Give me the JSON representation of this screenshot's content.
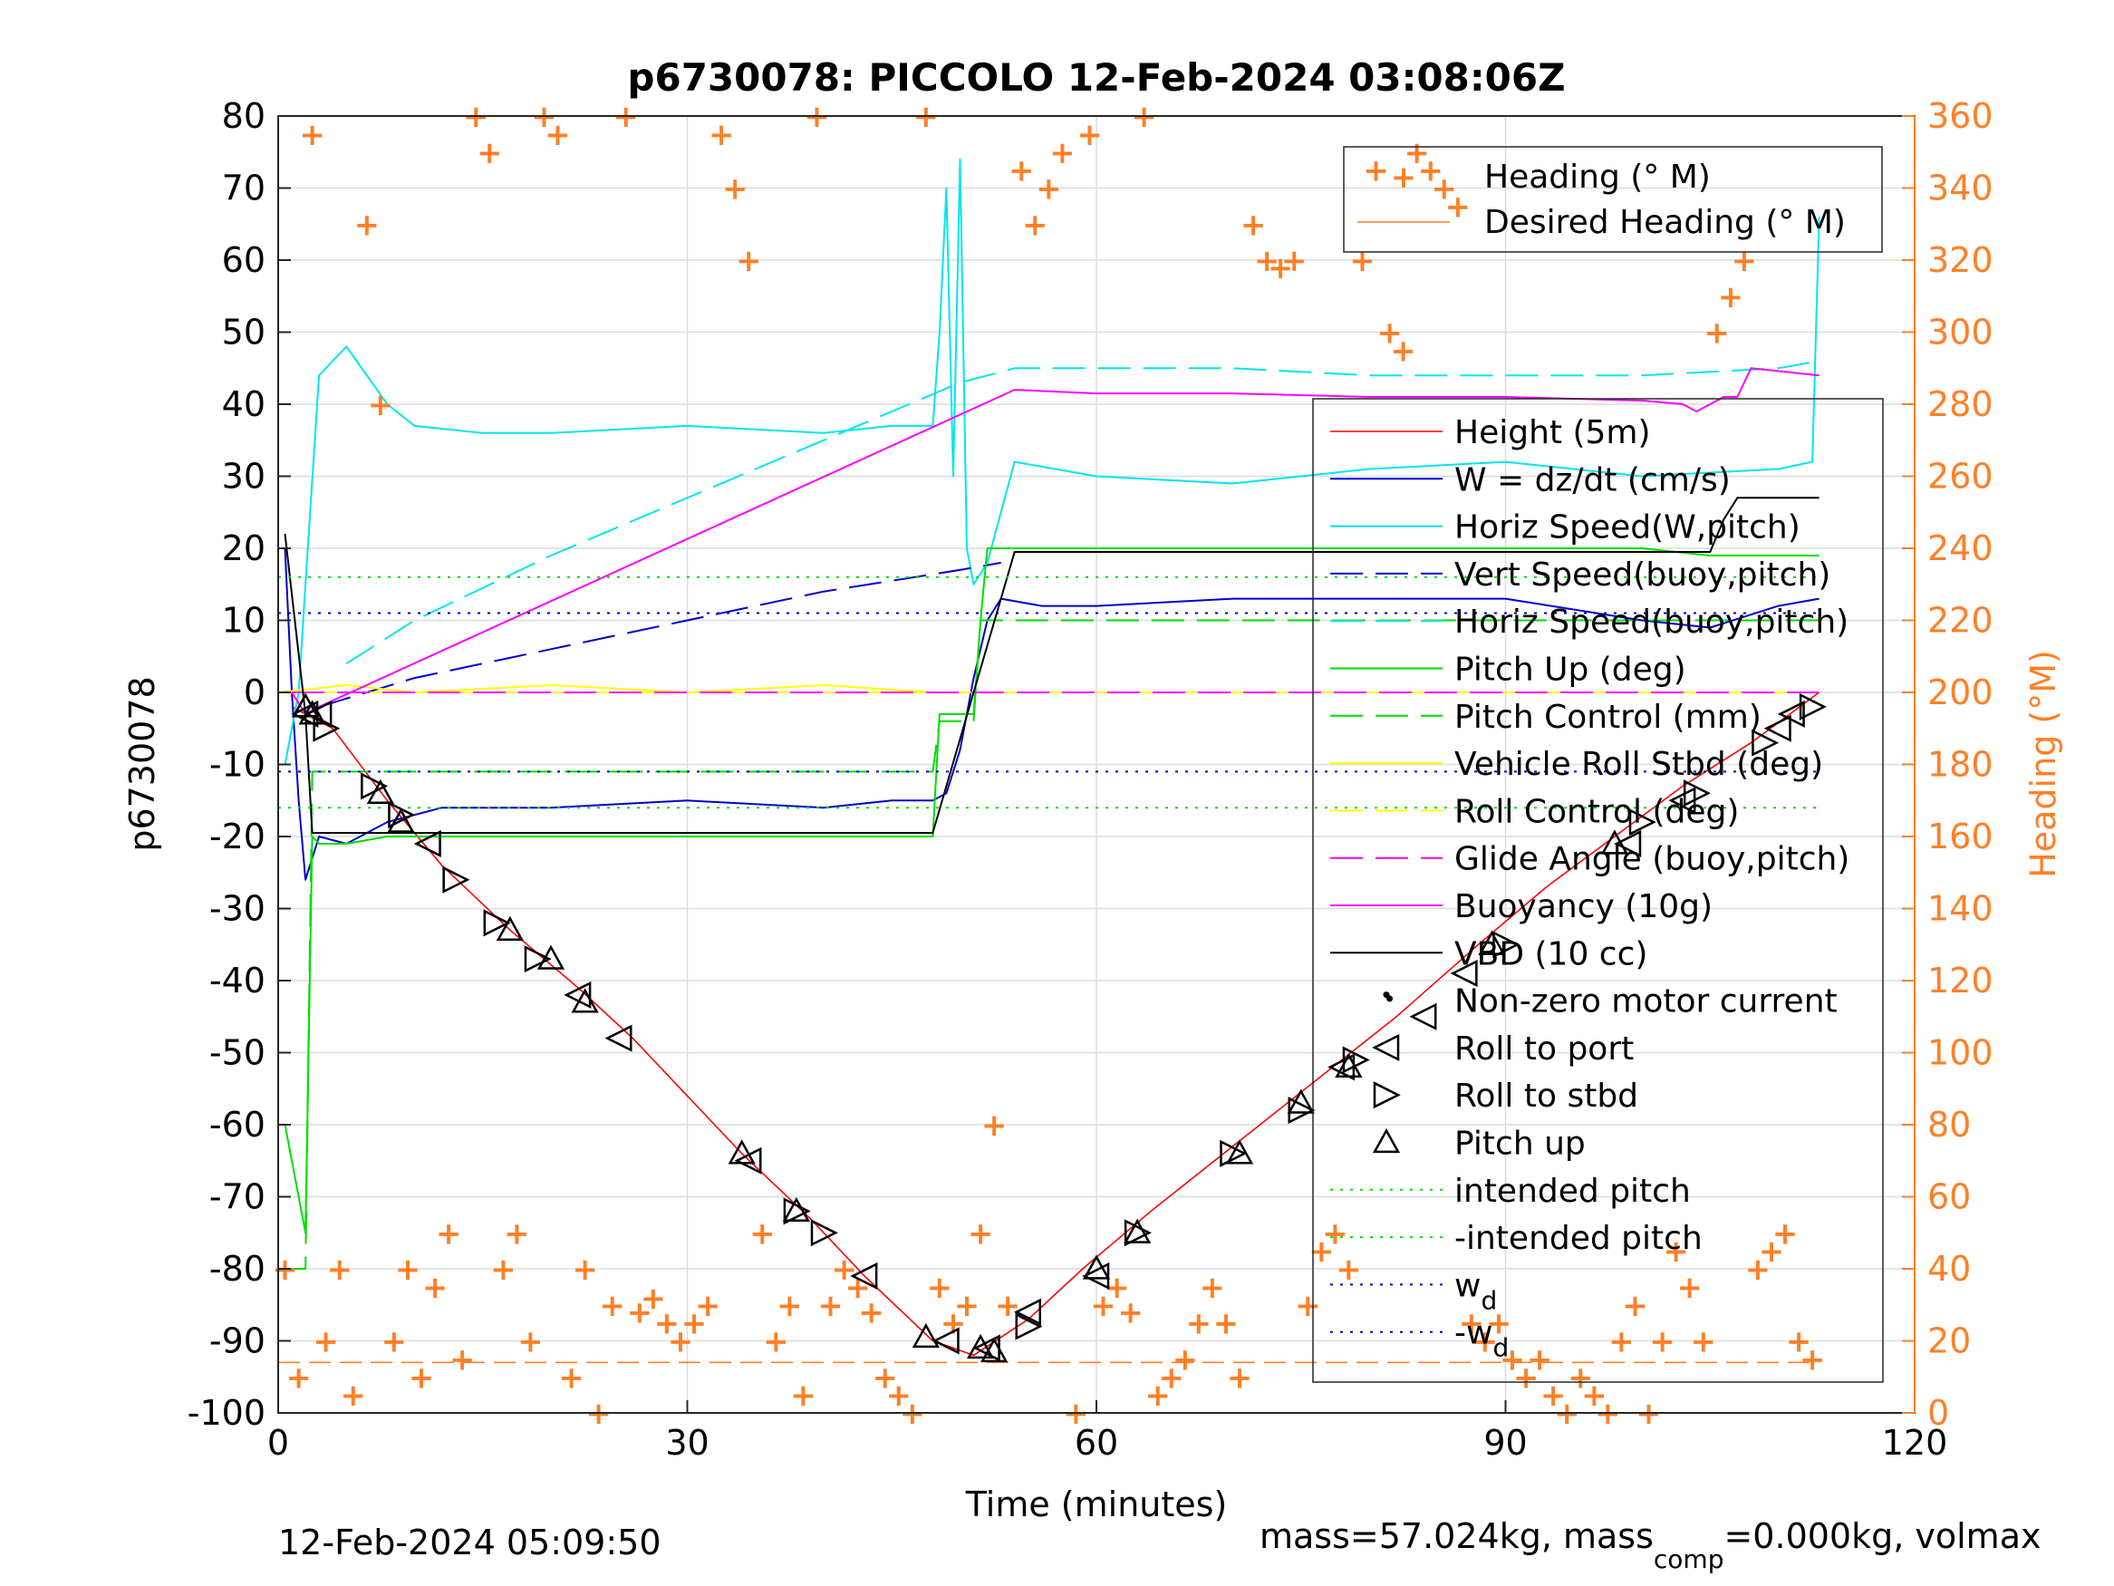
{
  "chart_data": {
    "type": "line",
    "title": "p6730078: PICCOLO 12-Feb-2024 03:08:06Z",
    "xlabel": "Time (minutes)",
    "ylabel": "p6730078",
    "y2label": "Heading (°M)",
    "xlim": [
      0,
      120
    ],
    "ylim": [
      -100,
      80
    ],
    "y2lim": [
      0,
      360
    ],
    "xticks": [
      0,
      30,
      60,
      90,
      120
    ],
    "yticks": [
      -100,
      -90,
      -80,
      -70,
      -60,
      -50,
      -40,
      -30,
      -20,
      -10,
      0,
      10,
      20,
      30,
      40,
      50,
      60,
      70,
      80
    ],
    "y2ticks": [
      0,
      20,
      40,
      60,
      80,
      100,
      120,
      140,
      160,
      180,
      200,
      220,
      240,
      260,
      280,
      300,
      320,
      340,
      360
    ],
    "grid": true,
    "colors": {
      "height": "#ff0000",
      "w": "#0000cd",
      "horiz_w": "#00e5ee",
      "vert_buoy": "#0000cd",
      "horiz_buoy": "#00e5ee",
      "pitch_up": "#00dd00",
      "pitch_control": "#00dd00",
      "roll": "#ffff00",
      "roll_control": "#ffff00",
      "glide": "#ff00ff",
      "buoyancy": "#ff00ff",
      "vbd": "#000000",
      "heading": "#ff7f27",
      "right_axis": "#ff7f27"
    },
    "series": [
      {
        "name": "Height (5m)",
        "x": [
          1,
          2,
          4,
          8,
          12,
          17,
          22,
          26,
          34,
          39,
          43,
          48,
          51,
          55,
          59,
          64,
          70,
          76,
          82,
          88,
          93,
          98,
          103,
          108,
          113
        ],
        "values": [
          -2,
          -3,
          -5,
          -15,
          -24,
          -33,
          -41,
          -48,
          -64,
          -73,
          -81,
          -90,
          -92,
          -87,
          -80,
          -72,
          -63,
          -54,
          -45,
          -35,
          -27,
          -20,
          -13,
          -7,
          0
        ]
      },
      {
        "name": "W = dz/dt (cm/s)",
        "x": [
          0.5,
          1,
          1.5,
          2,
          3,
          5,
          8,
          12,
          20,
          30,
          40,
          45,
          48,
          49,
          50,
          51,
          52,
          53,
          56,
          60,
          70,
          80,
          90,
          100,
          105,
          110,
          113
        ],
        "values": [
          20,
          0,
          -15,
          -26,
          -20,
          -21,
          -18,
          -16,
          -16,
          -15,
          -16,
          -15,
          -15,
          -14,
          -8,
          2,
          10,
          13,
          12,
          12,
          13,
          13,
          13,
          10,
          9,
          12,
          13
        ]
      },
      {
        "name": "Horiz Speed(W,pitch)",
        "x": [
          0.5,
          1,
          1.5,
          2,
          3,
          5,
          8,
          10,
          15,
          20,
          30,
          40,
          45,
          48,
          48.5,
          49,
          49.5,
          50,
          50.5,
          51,
          52,
          54,
          60,
          70,
          80,
          90,
          100,
          110,
          112.5,
          113
        ],
        "values": [
          -10,
          -5,
          0,
          15,
          44,
          48,
          40,
          37,
          36,
          36,
          37,
          36,
          37,
          37,
          50,
          70,
          30,
          74,
          20,
          15,
          18,
          32,
          30,
          29,
          31,
          32,
          30,
          31,
          32,
          66
        ]
      },
      {
        "name": "Vert Speed(buoy,pitch)",
        "x": [
          3,
          10,
          20,
          30,
          40,
          50,
          53
        ],
        "values": [
          -2,
          2,
          6,
          10,
          14,
          17,
          18
        ]
      },
      {
        "name": "Horiz Speed(buoy,pitch)",
        "x": [
          5,
          10,
          20,
          30,
          40,
          50,
          54,
          60,
          70,
          80,
          90,
          100,
          110,
          113
        ],
        "values": [
          4,
          10,
          19,
          27,
          35,
          43,
          45,
          45,
          45,
          44,
          44,
          44,
          45,
          46
        ]
      },
      {
        "name": "Pitch Up (deg)",
        "x": [
          0.5,
          1.5,
          2,
          2.5,
          3,
          5,
          8,
          10,
          15,
          20,
          30,
          40,
          48,
          48.5,
          50,
          51,
          51.5,
          52,
          53,
          55,
          60,
          70,
          80,
          90,
          100,
          105,
          110,
          113
        ],
        "values": [
          -60,
          -70,
          -75,
          -20,
          -21,
          -21,
          -20,
          -20,
          -20,
          -20,
          -20,
          -20,
          -20,
          -3,
          -3,
          -3,
          10,
          20,
          20,
          20,
          20,
          20,
          20,
          20,
          20,
          19,
          19,
          19
        ]
      },
      {
        "name": "Pitch Control (mm)",
        "x": [
          0.5,
          2,
          2.5,
          5,
          40,
          48,
          48.5,
          51,
          51.5,
          53,
          60,
          80,
          100,
          113
        ],
        "values": [
          -80,
          -80,
          -11,
          -11,
          -11,
          -11,
          -4,
          -4,
          10,
          10,
          10,
          10,
          10,
          10
        ]
      },
      {
        "name": "Vehicle Roll Stbd (deg)",
        "x": [
          0,
          5,
          10,
          20,
          30,
          40,
          48,
          55,
          60,
          70,
          80,
          90,
          100,
          110,
          113
        ],
        "values": [
          0,
          1,
          0,
          1,
          0,
          1,
          0,
          0,
          0,
          0,
          0,
          0,
          0,
          0,
          0
        ]
      },
      {
        "name": "Roll Control (deg)",
        "x": [
          0,
          5,
          10,
          20,
          30,
          40,
          48,
          55,
          60,
          70,
          80,
          90,
          100,
          110,
          113
        ],
        "values": [
          0,
          0,
          0,
          0,
          0,
          0,
          0,
          0,
          0,
          0,
          0,
          0,
          0,
          0,
          0
        ]
      },
      {
        "name": "Glide Angle (buoy,pitch)",
        "x": [
          1,
          20,
          40,
          60,
          80,
          100,
          113
        ],
        "values": [
          0,
          0,
          0,
          0,
          0,
          0,
          0
        ]
      },
      {
        "name": "Buoyancy (10g)",
        "x": [
          1,
          2,
          3,
          54,
          60,
          70,
          80,
          90,
          100,
          103,
          104,
          105,
          106,
          107,
          108,
          113
        ],
        "values": [
          0,
          -3,
          -2,
          42,
          41.5,
          41.5,
          41,
          41,
          40.5,
          40,
          39,
          40,
          41,
          41,
          45,
          44
        ]
      },
      {
        "name": "VBD (10 cc)",
        "x": [
          0.5,
          2,
          2.5,
          48,
          51,
          54,
          60,
          80,
          100,
          105,
          106,
          107,
          113
        ],
        "values": [
          22,
          -3,
          -19.5,
          -19.5,
          0,
          19.5,
          19.5,
          19.5,
          19.5,
          19.5,
          24,
          27,
          27
        ]
      },
      {
        "name": "Non-zero motor current",
        "x": [
          81.5
        ],
        "values": [
          -42.5
        ]
      },
      {
        "name": "Roll to port",
        "x": [
          2,
          3,
          11,
          22,
          25,
          34.5,
          43,
          49,
          52,
          55,
          60,
          78,
          84,
          87,
          99,
          103,
          110,
          111
        ],
        "values": [
          -3,
          -3,
          -21,
          -42,
          -48,
          -65,
          -81,
          -90,
          -91,
          -86,
          -81,
          -52,
          -45,
          -39,
          -21,
          -15,
          -5,
          -3
        ]
      },
      {
        "name": "Roll to stbd",
        "x": [
          3.5,
          7,
          9,
          13,
          16,
          19,
          38,
          40,
          55,
          63,
          70,
          75,
          79,
          90,
          100,
          104,
          109,
          112.5
        ],
        "values": [
          -5,
          -13,
          -17,
          -26,
          -32,
          -37,
          -72,
          -75,
          -88,
          -75,
          -64,
          -58,
          -51,
          -35,
          -18,
          -14,
          -7,
          -2
        ]
      },
      {
        "name": "Pitch up",
        "x": [
          2,
          2.5,
          7.5,
          9,
          17,
          20,
          22.5,
          34,
          38,
          47.5,
          51.5,
          52.5,
          60,
          63,
          70.5,
          75,
          78.5,
          89,
          98
        ],
        "values": [
          -2,
          -3,
          -14,
          -18,
          -33,
          -37,
          -43,
          -64,
          -72,
          -89.5,
          -91,
          -91.5,
          -80,
          -75,
          -64,
          -57,
          -52,
          -35,
          -21
        ]
      },
      {
        "name": "intended pitch",
        "x": [
          0,
          113
        ],
        "values": [
          16,
          16
        ]
      },
      {
        "name": "-intended pitch",
        "x": [
          0,
          113
        ],
        "values": [
          -16,
          -16
        ]
      },
      {
        "name": "w",
        "x": [
          0,
          113
        ],
        "values": [
          11,
          11
        ]
      },
      {
        "name": "-w",
        "x": [
          0,
          113
        ],
        "values": [
          -11,
          -11
        ]
      },
      {
        "name": "Heading (° M)",
        "axis": "right",
        "x": [
          0.5,
          1.5,
          2.5,
          3.5,
          4.5,
          5.5,
          6.5,
          7.5,
          8.5,
          9.5,
          10.5,
          11.5,
          12.5,
          13.5,
          14.5,
          15.5,
          16.5,
          17.5,
          18.5,
          19.5,
          20.5,
          21.5,
          22.5,
          23.5,
          24.5,
          25.5,
          26.5,
          27.5,
          28.5,
          29.5,
          30.5,
          31.5,
          32.5,
          33.5,
          34.5,
          35.5,
          36.5,
          37.5,
          38.5,
          39.5,
          40.5,
          41.5,
          42.5,
          43.5,
          44.5,
          45.5,
          46.5,
          47.5,
          48.5,
          49.5,
          50.5,
          51.5,
          52.5,
          53.5,
          54.5,
          55.5,
          56.5,
          57.5,
          58.5,
          59.5,
          60.5,
          61.5,
          62.5,
          63.5,
          64.5,
          65.5,
          66.5,
          67.5,
          68.5,
          69.5,
          70.5,
          71.5,
          72.5,
          73.5,
          74.5,
          75.5,
          76.5,
          77.5,
          78.5,
          79.5,
          80.5,
          81.5,
          82.5,
          83.5,
          84.5,
          85.5,
          86.5,
          87.5,
          88.5,
          89.5,
          90.5,
          91.5,
          92.5,
          93.5,
          94.5,
          95.5,
          96.5,
          97.5,
          98.5,
          99.5,
          100.5,
          101.5,
          102.5,
          103.5,
          104.5,
          105.5,
          106.5,
          107.5,
          108.5,
          109.5,
          110.5,
          111.5,
          112.5
        ],
        "values": [
          40,
          10,
          355,
          20,
          40,
          5,
          330,
          280,
          20,
          40,
          10,
          35,
          50,
          15,
          360,
          350,
          40,
          50,
          20,
          360,
          355,
          10,
          40,
          0,
          30,
          360,
          28,
          32,
          25,
          20,
          25,
          30,
          355,
          340,
          320,
          50,
          20,
          30,
          5,
          360,
          30,
          40,
          35,
          28,
          10,
          5,
          0,
          360,
          35,
          25,
          30,
          50,
          80,
          30,
          345,
          330,
          340,
          350,
          0,
          355,
          30,
          35,
          28,
          360,
          5,
          10,
          15,
          25,
          35,
          25,
          10,
          330,
          320,
          318,
          320,
          30,
          45,
          50,
          40,
          320,
          345,
          300,
          295,
          350,
          345,
          340,
          335,
          25,
          20,
          25,
          15,
          10,
          15,
          5,
          0,
          10,
          5,
          0,
          20,
          30,
          0,
          20,
          45,
          35,
          20,
          300,
          310,
          320,
          40,
          45,
          50,
          20,
          15
        ]
      },
      {
        "name": "Desired Heading (° M)",
        "axis": "right",
        "x": [
          0,
          113
        ],
        "values": [
          14,
          14
        ]
      }
    ]
  },
  "footer": {
    "timestamp": "12-Feb-2024 05:09:50",
    "mass_label": "mass=57.024kg, mass",
    "mass_sub": "comp",
    "mass_rest": "=0.000kg, volmax"
  }
}
